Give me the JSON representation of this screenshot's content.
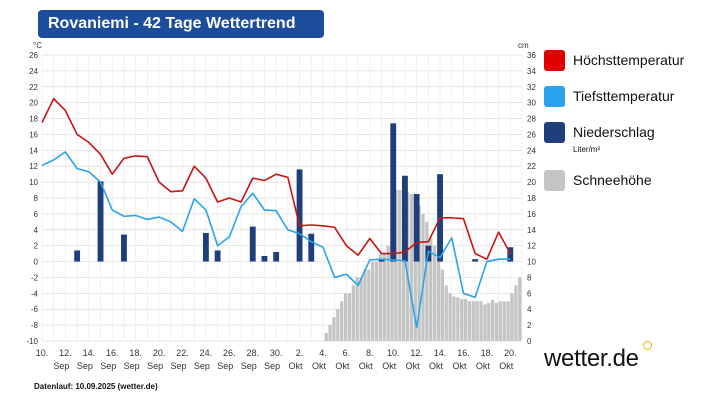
{
  "title": "Rovaniemi - 42 Tage Wettertrend",
  "footer": "Datenlauf: 10.09.2025 (wetter.de)",
  "logo": "wetter.de",
  "legend": [
    {
      "label": "Höchsttemperatur",
      "color": "#e00000"
    },
    {
      "label": "Tiefsttemperatur",
      "color": "#2aa3ee"
    },
    {
      "label": "Niederschlag",
      "sub": "Liter/m²",
      "color": "#1f3f7a"
    },
    {
      "label": "Schneehöhe",
      "color": "#c4c4c4"
    }
  ],
  "chart_data": {
    "type": "line+bar",
    "left_unit": "°C",
    "right_unit": "cm",
    "left_ylim": [
      -10,
      26
    ],
    "right_ylim": [
      0,
      36
    ],
    "left_ticks": [
      -10,
      -8,
      -6,
      -4,
      -2,
      0,
      2,
      4,
      6,
      8,
      10,
      12,
      14,
      16,
      18,
      20,
      22,
      24,
      26
    ],
    "right_ticks": [
      0,
      2,
      4,
      6,
      8,
      10,
      12,
      14,
      16,
      18,
      20,
      22,
      24,
      26,
      28,
      30,
      32,
      34,
      36
    ],
    "x_labels": [
      {
        "index": 0,
        "day": "10.",
        "month": ""
      },
      {
        "index": 2,
        "day": "12.",
        "month": "Sep"
      },
      {
        "index": 4,
        "day": "14.",
        "month": "Sep"
      },
      {
        "index": 6,
        "day": "16.",
        "month": "Sep"
      },
      {
        "index": 8,
        "day": "18.",
        "month": "Sep"
      },
      {
        "index": 10,
        "day": "20.",
        "month": "Sep"
      },
      {
        "index": 12,
        "day": "22.",
        "month": "Sep"
      },
      {
        "index": 14,
        "day": "24.",
        "month": "Sep"
      },
      {
        "index": 16,
        "day": "26.",
        "month": "Sep"
      },
      {
        "index": 18,
        "day": "28.",
        "month": "Sep"
      },
      {
        "index": 20,
        "day": "30.",
        "month": "Sep"
      },
      {
        "index": 22,
        "day": "2.",
        "month": "Okt"
      },
      {
        "index": 24,
        "day": "4.",
        "month": "Okt"
      },
      {
        "index": 26,
        "day": "6.",
        "month": "Okt"
      },
      {
        "index": 28,
        "day": "8.",
        "month": "Okt"
      },
      {
        "index": 30,
        "day": "10.",
        "month": "Okt"
      },
      {
        "index": 32,
        "day": "12.",
        "month": "Okt"
      },
      {
        "index": 34,
        "day": "14.",
        "month": "Okt"
      },
      {
        "index": 36,
        "day": "16.",
        "month": "Okt"
      },
      {
        "index": 38,
        "day": "18.",
        "month": "Okt"
      },
      {
        "index": 40,
        "day": "20.",
        "month": "Okt"
      }
    ],
    "x_count": 42,
    "series": [
      {
        "name": "Höchsttemperatur",
        "axis": "left",
        "values": [
          17.5,
          20.5,
          19,
          16,
          15,
          13.5,
          11,
          13,
          13.3,
          13.2,
          10,
          8.8,
          8.9,
          12,
          10.5,
          7.5,
          8,
          7.5,
          10.5,
          10.2,
          11,
          10.6,
          4.5,
          4.6,
          4.5,
          4.3,
          2,
          0.8,
          2.9,
          1,
          1,
          1.2,
          2.4,
          2.5,
          5.5,
          5.5,
          5.4,
          1,
          0.3,
          3.7,
          1
        ]
      },
      {
        "name": "Tiefsttemperatur",
        "axis": "left",
        "values": [
          12.1,
          12.8,
          13.8,
          11.7,
          11.3,
          10,
          6.5,
          5.7,
          5.8,
          5.3,
          5.6,
          5,
          3.8,
          7.9,
          6.5,
          2,
          3.1,
          6.9,
          8.6,
          6.5,
          6.4,
          4,
          3.5,
          2.5,
          1.8,
          -2,
          -1.6,
          -3,
          0.2,
          0.3,
          0.2,
          0.1,
          -8.3,
          1.3,
          0.5,
          3,
          -4,
          -4.5,
          0,
          0.3,
          0.3
        ]
      },
      {
        "name": "Niederschlag",
        "axis": "right",
        "type": "bar",
        "values": [
          0,
          0,
          0,
          1.4,
          0,
          10.1,
          0,
          3.4,
          0,
          0,
          0,
          0,
          0,
          0,
          3.6,
          1.4,
          0,
          0,
          4.4,
          0.7,
          1.2,
          0,
          11.6,
          3.5,
          0,
          0,
          0,
          0,
          0,
          0.3,
          17.4,
          10.8,
          8.5,
          2,
          11,
          0,
          0,
          0.3,
          0,
          0,
          1.8
        ]
      },
      {
        "name": "Schneehöhe",
        "axis": "right",
        "type": "bar",
        "values": [
          0,
          0,
          0,
          0,
          0,
          0,
          0,
          0,
          0,
          0,
          0,
          0,
          0,
          0,
          0,
          0,
          0,
          0,
          0,
          0,
          0,
          0,
          0,
          0,
          0,
          0,
          0,
          0,
          0,
          0,
          0,
          0,
          0,
          0,
          0,
          0,
          0,
          0,
          0,
          0,
          0,
          0,
          0,
          0,
          0,
          0,
          0,
          0,
          0,
          0,
          0,
          0,
          0,
          0,
          0,
          0,
          0,
          0,
          0,
          0,
          0,
          0,
          0,
          0,
          0,
          0,
          0,
          0,
          0,
          0,
          0,
          0,
          0,
          1,
          2,
          3,
          4,
          5,
          6,
          6,
          7,
          8,
          8,
          9,
          9,
          10,
          10,
          11,
          11,
          12,
          12,
          19,
          19,
          19,
          18.8,
          18.5,
          18,
          17,
          16,
          15,
          13,
          12,
          10,
          9,
          7,
          6,
          5.6,
          5.5,
          5.3,
          5.3,
          5,
          5,
          5,
          5,
          4.6,
          4.8,
          5.2,
          4.8,
          5,
          5,
          5,
          6,
          7,
          8
        ]
      }
    ]
  }
}
